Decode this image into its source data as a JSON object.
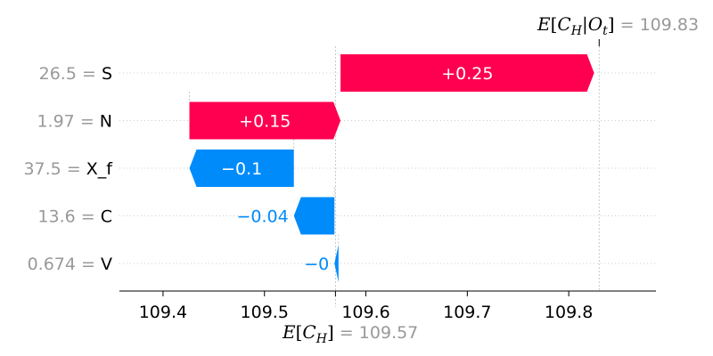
{
  "chart_data": {
    "type": "waterfall",
    "base_value": 109.57,
    "output_value": 109.83,
    "base_label": "E[C_H]",
    "output_label": "E[C_H|O_t]",
    "base_value_label": "109.57",
    "output_value_label": "109.83",
    "xlim": [
      109.357,
      109.886
    ],
    "x_ticks": [
      109.4,
      109.5,
      109.6,
      109.7,
      109.8
    ],
    "x_tick_labels": [
      "109.4",
      "109.5",
      "109.6",
      "109.7",
      "109.8"
    ],
    "features": [
      {
        "name": "S",
        "value_label": "26.5",
        "start": 109.575,
        "end": 109.825,
        "label": "+0.25",
        "label_inside": true
      },
      {
        "name": "N",
        "value_label": "1.97",
        "start": 109.426,
        "end": 109.575,
        "label": "+0.15",
        "label_inside": true
      },
      {
        "name": "X_f",
        "value_label": "37.5",
        "start": 109.529,
        "end": 109.426,
        "label": "−0.1",
        "label_inside": true
      },
      {
        "name": "C",
        "value_label": "13.6",
        "start": 109.569,
        "end": 109.529,
        "label": "−0.04",
        "label_inside": false
      },
      {
        "name": "V",
        "value_label": "0.674",
        "start": 109.573,
        "end": 109.569,
        "label": "−0",
        "label_inside": false
      }
    ],
    "colors": {
      "positive": "#ff0051",
      "negative": "#008bfb",
      "grid": "#cccccc",
      "value_text": "#999999"
    }
  }
}
